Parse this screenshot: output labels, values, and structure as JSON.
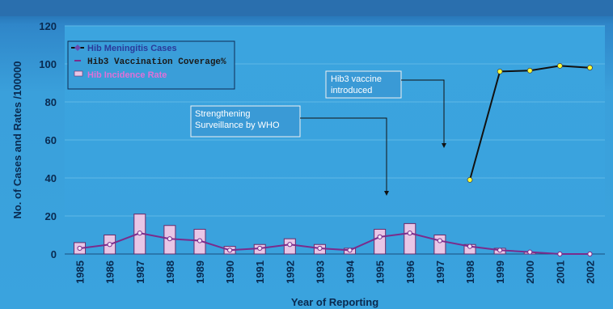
{
  "chart_data": {
    "type": "bar",
    "categories": [
      "1985",
      "1986",
      "1987",
      "1988",
      "1989",
      "1990",
      "1991",
      "1992",
      "1993",
      "1994",
      "1995",
      "1996",
      "1997",
      "1998",
      "1999",
      "2000",
      "2001",
      "2002"
    ],
    "series": [
      {
        "name": "Hib Meningitis Cases",
        "type": "bar",
        "values": [
          6,
          10,
          21,
          15,
          13,
          4,
          5,
          8,
          5,
          3,
          13,
          16,
          10,
          5,
          3,
          1,
          0,
          0
        ]
      },
      {
        "name": "Hib3 Vaccination Coverage%",
        "type": "line",
        "values": [
          null,
          null,
          null,
          null,
          null,
          null,
          null,
          null,
          null,
          null,
          null,
          null,
          null,
          39,
          96,
          96.5,
          99,
          98
        ]
      },
      {
        "name": "Hib Incidence Rate",
        "type": "line",
        "values": [
          3,
          5,
          11,
          8,
          7,
          2,
          3,
          5,
          3,
          2,
          9,
          11,
          7,
          4,
          2,
          1,
          0,
          0
        ]
      }
    ],
    "ylabel": "No. of Cases and Rates /100000",
    "xlabel": "Year of Reporting",
    "ylim": [
      0,
      120
    ],
    "yticks": [
      0,
      20,
      40,
      60,
      80,
      100,
      120
    ],
    "legend_position": "top-left",
    "grid": true,
    "annotations": [
      {
        "lines": [
          "Hib3 vaccine",
          "introduced"
        ],
        "target_category": "1997"
      },
      {
        "lines": [
          "Strengthening",
          "Surveillance by WHO"
        ],
        "target_category": "1995"
      }
    ],
    "legend": [
      {
        "label": "Hib Meningitis Cases",
        "marker": "diamond"
      },
      {
        "label": "Hib3 Vaccination Coverage%",
        "marker": "line"
      },
      {
        "label": "Hib Incidence Rate",
        "marker": "bar"
      }
    ],
    "colors": {
      "bar_fill": "#e8c6e6",
      "bar_stroke": "#6a2a6a",
      "incidence_line": "#7a2c8c",
      "coverage_line": "#111111",
      "coverage_marker": "#ffff33",
      "grid": "#5fb8e6",
      "legend_text_1": "#2a3a9a",
      "legend_text_3": "#e070d8"
    }
  }
}
